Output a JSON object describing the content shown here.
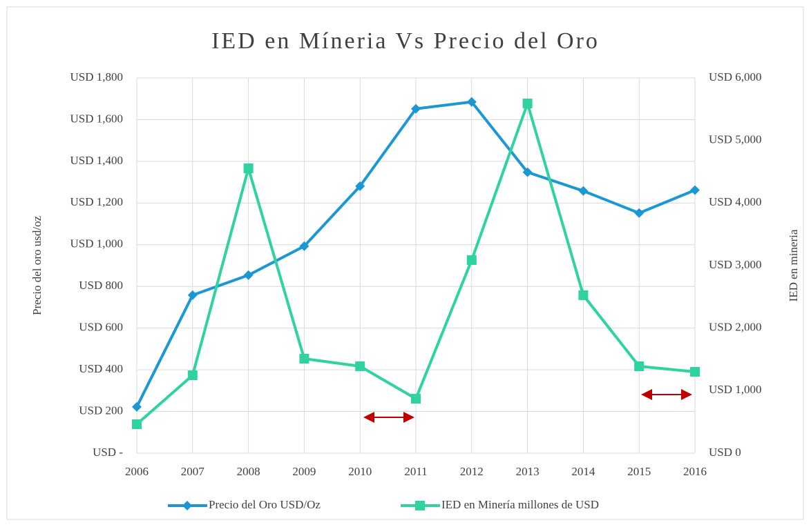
{
  "chart_data": {
    "type": "line",
    "title": "IED en Míneria Vs Precio del Oro",
    "y_label": "Precio del oro usd/oz",
    "y2_label": "IED en mineria",
    "categories": [
      "2006",
      "2007",
      "2008",
      "2009",
      "2010",
      "2011",
      "2012",
      "2013",
      "2014",
      "2015",
      "2016"
    ],
    "series": [
      {
        "name": "Precio del Oro USD/Oz",
        "color": "#1b98d4",
        "marker": "diamond",
        "values": [
          222,
          758,
          854,
          993,
          1281,
          1652,
          1685,
          1348,
          1258,
          1152,
          1262
        ]
      },
      {
        "name": "IED en Minería millones de USD",
        "color": "#2ed3a0",
        "marker": "square",
        "axis": "y2",
        "values": [
          463,
          1246,
          4555,
          1511,
          1390,
          871,
          3088,
          5592,
          2526,
          1390,
          1301
        ]
      }
    ],
    "ylim": [
      0,
      1800
    ],
    "yticks": [
      {
        "value": 0,
        "label": "USD -"
      },
      {
        "value": 200,
        "label": "USD 200"
      },
      {
        "value": 400,
        "label": "USD 400"
      },
      {
        "value": 600,
        "label": "USD 600"
      },
      {
        "value": 800,
        "label": "USD 800"
      },
      {
        "value": 1000,
        "label": "USD 1,000"
      },
      {
        "value": 1200,
        "label": "USD 1,200"
      },
      {
        "value": 1400,
        "label": "USD 1,400"
      },
      {
        "value": 1600,
        "label": "USD 1,600"
      },
      {
        "value": 1800,
        "label": "USD 1,800"
      }
    ],
    "y2lim": [
      0,
      6000
    ],
    "y2ticks": [
      {
        "value": 0,
        "label": "USD 0"
      },
      {
        "value": 1000,
        "label": "USD 1,000"
      },
      {
        "value": 2000,
        "label": "USD 2,000"
      },
      {
        "value": 3000,
        "label": "USD 3,000"
      },
      {
        "value": 4000,
        "label": "USD 4,000"
      },
      {
        "value": 5000,
        "label": "USD 5,000"
      },
      {
        "value": 6000,
        "label": "USD 6,000"
      }
    ],
    "grid": true,
    "legend": "bottom"
  }
}
